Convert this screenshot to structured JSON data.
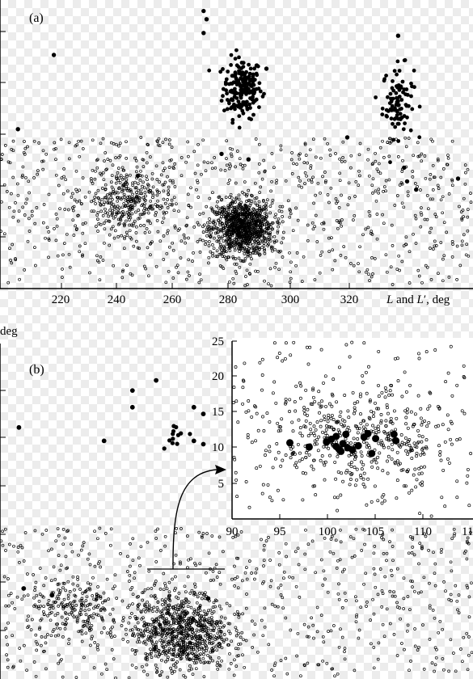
{
  "chart_data": [
    {
      "type": "scatter",
      "panel_label": "(a)",
      "xlabel": "L and L′, deg",
      "xlabel_parts": [
        "L",
        " and ",
        "L",
        "′, deg"
      ],
      "x_tick_labels": [
        "220",
        "240",
        "260",
        "280",
        "300",
        "320"
      ],
      "xlim": [
        202,
        360
      ],
      "ylim": [
        -5,
        100
      ],
      "grid": false,
      "series": [
        {
          "marker": "filled-circle",
          "clusters": [
            {
              "center": [
                283,
                68
              ],
              "spread": [
                3.2,
                5.5
              ],
              "count": 190
            },
            {
              "center": [
                335,
                63
              ],
              "spread": [
                2.6,
                6.5
              ],
              "count": 95
            }
          ],
          "points": [
            [
              270,
              96
            ],
            [
              271,
              93
            ],
            [
              270,
              88
            ],
            [
              220,
              80
            ],
            [
              335,
              87
            ],
            [
              208,
              53
            ],
            [
              276,
              44
            ],
            [
              318,
              50
            ],
            [
              291,
              75
            ],
            [
              285,
              42
            ],
            [
              338,
              34
            ],
            [
              341,
              31
            ],
            [
              355,
              35
            ],
            [
              337,
              39
            ],
            [
              248,
              36
            ]
          ]
        },
        {
          "marker": "open-circle",
          "clusters": [
            {
              "center": [
                283,
                17
              ],
              "spread": [
                5,
                5
              ],
              "count": 950
            },
            {
              "center": [
                245,
                27
              ],
              "spread": [
                7,
                6
              ],
              "count": 300
            }
          ],
          "background": {
            "count": 800,
            "ymax": 50
          }
        }
      ]
    },
    {
      "type": "scatter",
      "panel_label": "(b)",
      "ylabel": "deg",
      "xlim": [
        0,
        100
      ],
      "ylim": [
        0,
        100
      ],
      "grid": false,
      "series": [
        {
          "marker": "filled-circle",
          "clusters": [
            {
              "center": [
                37,
                73
              ],
              "spread": [
                1.5,
                1.8
              ],
              "count": 12
            }
          ],
          "points": [
            [
              4,
              75
            ],
            [
              22,
              71
            ],
            [
              28,
              86
            ],
            [
              28,
              81
            ],
            [
              33,
              89
            ],
            [
              41,
              81
            ],
            [
              43,
              79
            ],
            [
              41,
              71
            ],
            [
              43,
              70
            ],
            [
              5,
              27
            ],
            [
              11,
              25
            ],
            [
              44,
              24
            ]
          ]
        },
        {
          "marker": "open-circle",
          "clusters": [
            {
              "center": [
                38,
                14
              ],
              "spread": [
                5,
                6
              ],
              "count": 800
            },
            {
              "center": [
                16,
                20
              ],
              "spread": [
                5,
                5
              ],
              "count": 220
            }
          ],
          "background": {
            "count": 600,
            "ymax": 45
          }
        }
      ],
      "inset": {
        "xlim": [
          90,
          115
        ],
        "ylim": [
          0,
          25
        ],
        "x_tick_labels": [
          "90",
          "95",
          "100",
          "105",
          "110",
          "11"
        ],
        "y_tick_labels": [
          "5",
          "10",
          "15",
          "20",
          "25"
        ],
        "series": [
          {
            "marker": "filled-circle",
            "points": [
              [
                96,
                10.7
              ],
              [
                98,
                10.1
              ],
              [
                99.8,
                10.8
              ],
              [
                100.3,
                11.2
              ],
              [
                100.8,
                10.2
              ],
              [
                101.3,
                9.5
              ],
              [
                101.5,
                10.6
              ],
              [
                101.8,
                11.9
              ],
              [
                102.0,
                10.0
              ],
              [
                102.5,
                9.7
              ],
              [
                103.1,
                10.3
              ],
              [
                103.7,
                11.5
              ],
              [
                104.1,
                12.0
              ],
              [
                104.9,
                11.3
              ],
              [
                107.0,
                11.0
              ],
              [
                106.8,
                11.9
              ],
              [
                100.8,
                11.6
              ],
              [
                101.1,
                9.8
              ],
              [
                104.5,
                9.2
              ]
            ]
          },
          {
            "marker": "open-circle",
            "cluster": {
              "center": [
                103,
                11
              ],
              "spread": [
                5,
                3.5
              ],
              "count": 430
            },
            "background": {
              "count": 170
            }
          }
        ]
      }
    }
  ]
}
